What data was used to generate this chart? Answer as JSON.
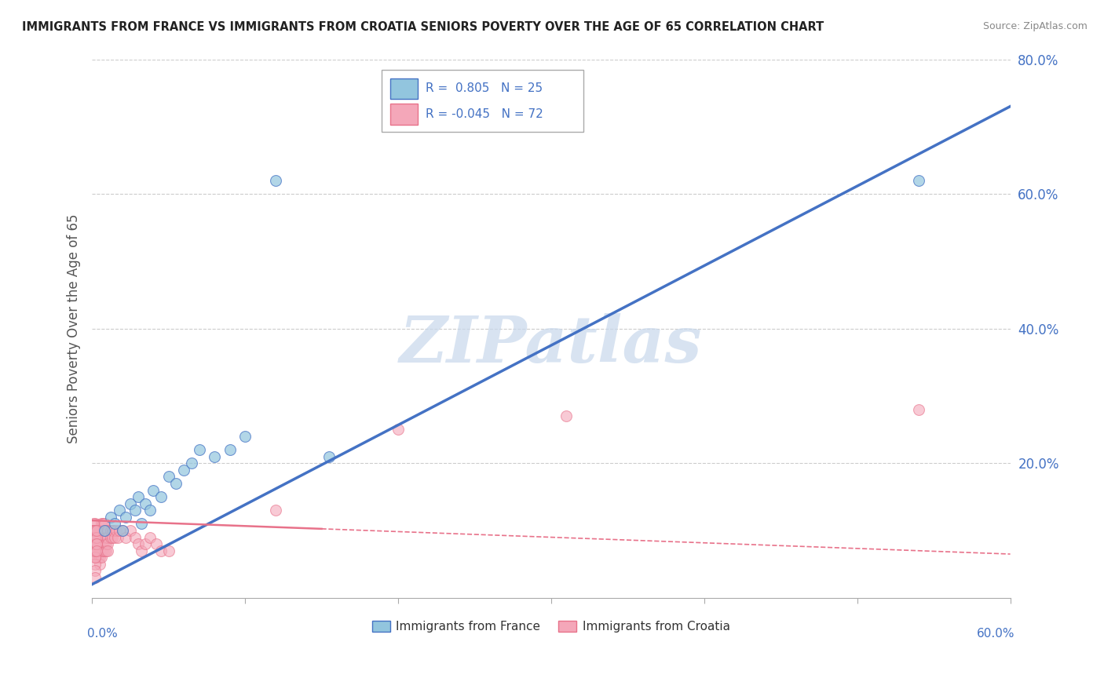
{
  "title": "IMMIGRANTS FROM FRANCE VS IMMIGRANTS FROM CROATIA SENIORS POVERTY OVER THE AGE OF 65 CORRELATION CHART",
  "source": "Source: ZipAtlas.com",
  "ylabel": "Seniors Poverty Over the Age of 65",
  "legend_label_france": "Immigrants from France",
  "legend_label_croatia": "Immigrants from Croatia",
  "watermark": "ZIPatlas",
  "xlim": [
    0.0,
    0.6
  ],
  "ylim": [
    0.0,
    0.8
  ],
  "yticks": [
    0.2,
    0.4,
    0.6,
    0.8
  ],
  "ytick_labels": [
    "20.0%",
    "40.0%",
    "60.0%",
    "80.0%"
  ],
  "color_france": "#92C5DE",
  "color_france_line": "#4472C4",
  "color_croatia": "#F4A7B9",
  "color_croatia_line": "#E8728A",
  "background": "#FFFFFF",
  "france_trend_x0": 0.0,
  "france_trend_y0": 0.02,
  "france_trend_x1": 0.6,
  "france_trend_y1": 0.73,
  "croatia_trend_x0": 0.0,
  "croatia_trend_y0": 0.115,
  "croatia_trend_x1": 0.6,
  "croatia_trend_y1": 0.065,
  "france_dots_x": [
    0.008,
    0.012,
    0.015,
    0.018,
    0.02,
    0.022,
    0.025,
    0.028,
    0.03,
    0.032,
    0.035,
    0.038,
    0.04,
    0.045,
    0.05,
    0.055,
    0.06,
    0.065,
    0.07,
    0.08,
    0.09,
    0.1,
    0.12,
    0.155,
    0.54
  ],
  "france_dots_y": [
    0.1,
    0.12,
    0.11,
    0.13,
    0.1,
    0.12,
    0.14,
    0.13,
    0.15,
    0.11,
    0.14,
    0.13,
    0.16,
    0.15,
    0.18,
    0.17,
    0.19,
    0.2,
    0.22,
    0.21,
    0.22,
    0.24,
    0.62,
    0.21,
    0.62
  ],
  "croatia_dots_x": [
    0.001,
    0.001,
    0.001,
    0.002,
    0.002,
    0.002,
    0.002,
    0.002,
    0.003,
    0.003,
    0.003,
    0.003,
    0.003,
    0.004,
    0.004,
    0.004,
    0.004,
    0.004,
    0.005,
    0.005,
    0.005,
    0.005,
    0.005,
    0.005,
    0.006,
    0.006,
    0.006,
    0.006,
    0.006,
    0.006,
    0.007,
    0.007,
    0.007,
    0.007,
    0.007,
    0.008,
    0.008,
    0.008,
    0.008,
    0.008,
    0.009,
    0.009,
    0.009,
    0.009,
    0.01,
    0.01,
    0.01,
    0.01,
    0.012,
    0.012,
    0.013,
    0.013,
    0.014,
    0.015,
    0.016,
    0.017,
    0.018,
    0.02,
    0.022,
    0.025,
    0.028,
    0.03,
    0.032,
    0.035,
    0.038,
    0.042,
    0.045,
    0.05,
    0.12,
    0.2,
    0.31,
    0.54
  ],
  "croatia_dots_y": [
    0.1,
    0.09,
    0.08,
    0.1,
    0.09,
    0.08,
    0.07,
    0.11,
    0.1,
    0.09,
    0.08,
    0.07,
    0.06,
    0.1,
    0.09,
    0.08,
    0.07,
    0.06,
    0.1,
    0.09,
    0.08,
    0.07,
    0.06,
    0.05,
    0.1,
    0.09,
    0.08,
    0.07,
    0.06,
    0.11,
    0.1,
    0.09,
    0.08,
    0.07,
    0.11,
    0.1,
    0.09,
    0.08,
    0.07,
    0.11,
    0.1,
    0.09,
    0.08,
    0.07,
    0.1,
    0.09,
    0.08,
    0.07,
    0.1,
    0.09,
    0.1,
    0.09,
    0.1,
    0.09,
    0.1,
    0.09,
    0.1,
    0.1,
    0.09,
    0.1,
    0.09,
    0.08,
    0.07,
    0.08,
    0.09,
    0.08,
    0.07,
    0.07,
    0.13,
    0.25,
    0.27,
    0.28
  ],
  "croatia_cluster_x": [
    0.001,
    0.001,
    0.001,
    0.001,
    0.001,
    0.001,
    0.001,
    0.001,
    0.001,
    0.001,
    0.002,
    0.002,
    0.002,
    0.002,
    0.002,
    0.002,
    0.002,
    0.002,
    0.002,
    0.002,
    0.002,
    0.002,
    0.002,
    0.002,
    0.002,
    0.003,
    0.003,
    0.003,
    0.003,
    0.003
  ],
  "croatia_cluster_y": [
    0.09,
    0.1,
    0.11,
    0.1,
    0.09,
    0.08,
    0.07,
    0.08,
    0.09,
    0.1,
    0.08,
    0.09,
    0.1,
    0.09,
    0.08,
    0.07,
    0.06,
    0.05,
    0.04,
    0.03,
    0.06,
    0.07,
    0.08,
    0.09,
    0.1,
    0.08,
    0.09,
    0.1,
    0.08,
    0.07
  ]
}
